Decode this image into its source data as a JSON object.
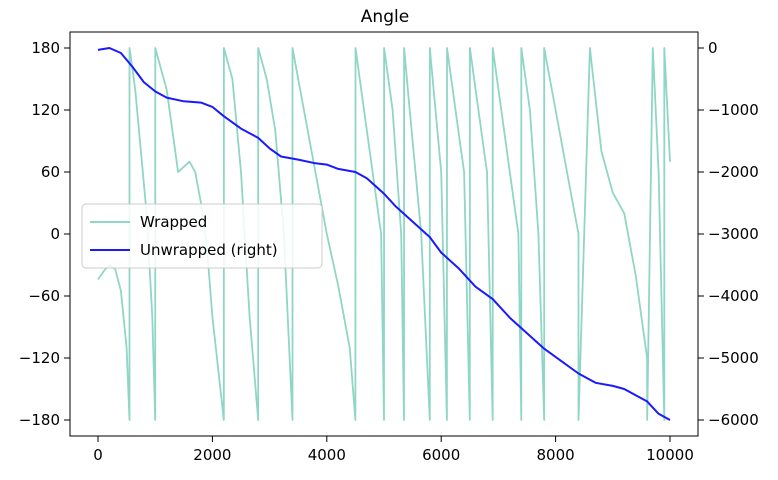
{
  "chart_data": {
    "type": "line",
    "title": "Angle",
    "xlabel": "",
    "ylabel": "",
    "xlim": [
      0,
      10000
    ],
    "ylim_left": [
      -180,
      180
    ],
    "ylim_right": [
      -6000,
      0
    ],
    "x_ticks": [
      0,
      2000,
      4000,
      6000,
      8000,
      10000
    ],
    "y_ticks_left": [
      -180,
      -120,
      -60,
      0,
      60,
      120,
      180
    ],
    "y_ticks_right": [
      -6000,
      -5000,
      -4000,
      -3000,
      -2000,
      -1000,
      0
    ],
    "grid": false,
    "legend_position": "center-left",
    "series": [
      {
        "name": "Wrapped",
        "axis": "left",
        "color": "#8fd6c4",
        "x": [
          0,
          100,
          200,
          300,
          400,
          500,
          550,
          551,
          650,
          750,
          850,
          950,
          1000,
          1001,
          1100,
          1200,
          1300,
          1400,
          1500,
          1600,
          1700,
          1800,
          1900,
          2000,
          2100,
          2200,
          2201,
          2350,
          2500,
          2650,
          2800,
          2801,
          2950,
          3100,
          3250,
          3400,
          3401,
          3600,
          3800,
          4000,
          4200,
          4400,
          4500,
          4501,
          4650,
          4800,
          4950,
          5000,
          5001,
          5150,
          5300,
          5350,
          5351,
          5450,
          5550,
          5650,
          5800,
          5801,
          5900,
          6000,
          6100,
          6101,
          6250,
          6400,
          6500,
          6501,
          6650,
          6800,
          6900,
          6901,
          7050,
          7200,
          7350,
          7400,
          7401,
          7550,
          7700,
          7800,
          7801,
          8000,
          8200,
          8400,
          8401,
          8600,
          8800,
          9000,
          9200,
          9400,
          9600,
          9601,
          9700,
          9800,
          9900,
          9901,
          10000
        ],
        "y": [
          -44,
          -36,
          -30,
          -34,
          -55,
          -110,
          -180,
          180,
          140,
          80,
          20,
          -80,
          -180,
          180,
          160,
          140,
          100,
          60,
          65,
          70,
          60,
          30,
          -10,
          -80,
          -130,
          -180,
          180,
          150,
          60,
          -80,
          -180,
          180,
          150,
          100,
          0,
          -180,
          180,
          120,
          60,
          0,
          -50,
          -110,
          -180,
          180,
          120,
          60,
          0,
          -180,
          180,
          120,
          0,
          -180,
          180,
          120,
          60,
          0,
          -180,
          180,
          120,
          60,
          -180,
          180,
          120,
          60,
          -180,
          180,
          120,
          60,
          -180,
          180,
          120,
          60,
          0,
          -180,
          180,
          120,
          0,
          -180,
          180,
          120,
          60,
          0,
          -180,
          180,
          80,
          40,
          20,
          -40,
          -120,
          -180,
          180,
          60,
          -180,
          180,
          70
        ]
      },
      {
        "name": "Unwrapped (right)",
        "axis": "right",
        "color": "#1a1aff",
        "x": [
          0,
          200,
          400,
          600,
          800,
          1000,
          1200,
          1500,
          1800,
          2000,
          2200,
          2500,
          2800,
          3000,
          3200,
          3500,
          3800,
          4000,
          4200,
          4500,
          4700,
          5000,
          5200,
          5500,
          5800,
          6000,
          6300,
          6600,
          6900,
          7200,
          7500,
          7800,
          8100,
          8400,
          8700,
          9000,
          9200,
          9400,
          9600,
          9800,
          10000
        ],
        "y": [
          -30,
          0,
          -80,
          -300,
          -550,
          -700,
          -800,
          -860,
          -880,
          -950,
          -1100,
          -1300,
          -1450,
          -1620,
          -1750,
          -1800,
          -1860,
          -1880,
          -1950,
          -2000,
          -2100,
          -2350,
          -2550,
          -2800,
          -3050,
          -3300,
          -3550,
          -3850,
          -4050,
          -4350,
          -4600,
          -4850,
          -5050,
          -5250,
          -5400,
          -5450,
          -5500,
          -5600,
          -5700,
          -5900,
          -6000
        ]
      }
    ]
  }
}
